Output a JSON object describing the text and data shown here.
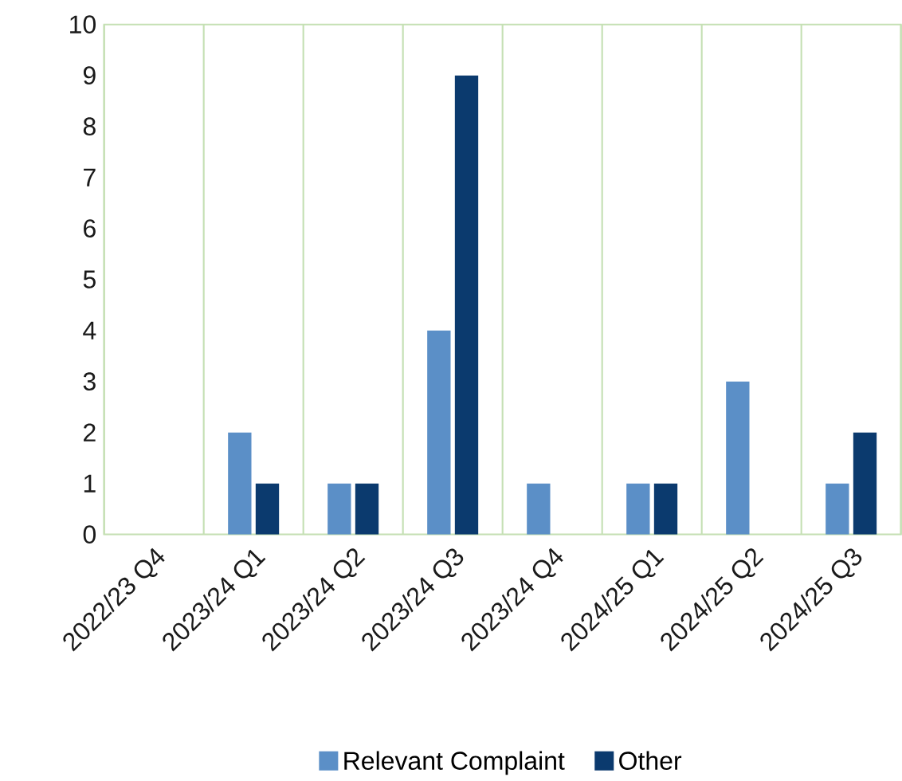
{
  "chart_data": {
    "type": "bar",
    "categories": [
      "2022/23 Q4",
      "2023/24 Q1",
      "2023/24 Q2",
      "2023/24 Q3",
      "2023/24 Q4",
      "2024/25 Q1",
      "2024/25 Q2",
      "2024/25 Q3"
    ],
    "series": [
      {
        "name": "Relevant Complaint",
        "color": "#5b8fc7",
        "values": [
          0,
          2,
          1,
          4,
          1,
          1,
          3,
          1
        ]
      },
      {
        "name": "Other",
        "color": "#0b3a6e",
        "values": [
          0,
          1,
          1,
          9,
          0,
          1,
          0,
          2
        ]
      }
    ],
    "ylim": [
      0,
      10
    ],
    "yticks": [
      0,
      1,
      2,
      3,
      4,
      5,
      6,
      7,
      8,
      9,
      10
    ],
    "grid": "x",
    "legend": "bottom"
  }
}
